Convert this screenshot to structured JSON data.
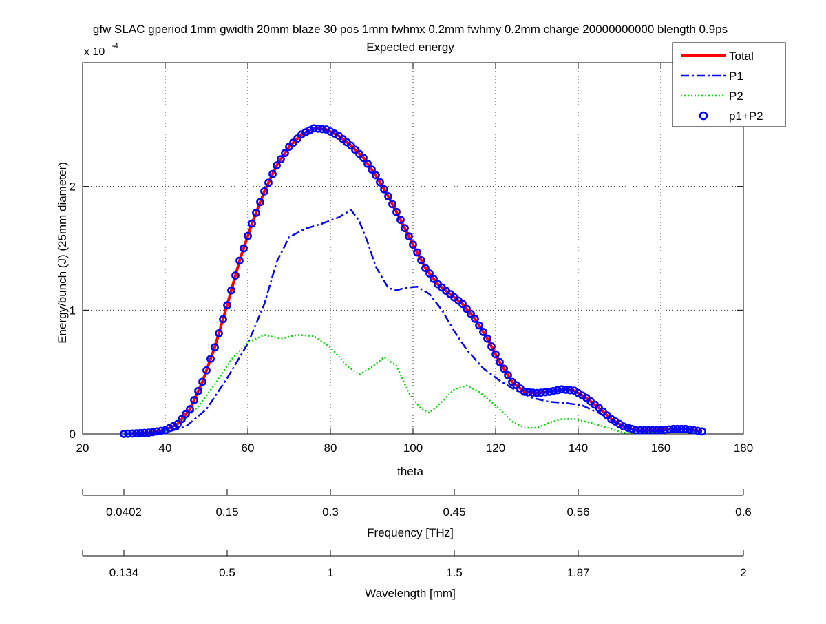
{
  "chart_data": {
    "type": "line",
    "title": "gfw SLAC gperiod 1mm gwidth 20mm blaze 30 pos 1mm fwhmx 0.2mm fwhmy 0.2mm charge 20000000000 blength 0.9ps",
    "subtitle": "Expected energy",
    "xlabel": "theta",
    "ylabel": "Energy/bunch (J) (25mm diameter)",
    "y_multiplier": "x 10",
    "y_multiplier_exponent": "-4",
    "xlim": [
      20,
      180
    ],
    "ylim": [
      0,
      0.0003
    ],
    "x_ticks": [
      20,
      40,
      60,
      80,
      100,
      120,
      140,
      160,
      180
    ],
    "y_ticks": [
      0,
      0.0001,
      0.0002
    ],
    "y_tick_labels": [
      "0",
      "1",
      "2"
    ],
    "grid": true,
    "legend_position": "top-right",
    "series": [
      {
        "name": "Total",
        "color": "#ff0000",
        "style": "solid",
        "points": [
          [
            30,
            0
          ],
          [
            36,
            1e-06
          ],
          [
            40,
            3e-06
          ],
          [
            43,
            8e-06
          ],
          [
            46,
            2e-05
          ],
          [
            49,
            4.2e-05
          ],
          [
            52,
            7e-05
          ],
          [
            55,
            0.000104
          ],
          [
            58,
            0.00014
          ],
          [
            61,
            0.00017
          ],
          [
            64,
            0.000196
          ],
          [
            67,
            0.000217
          ],
          [
            70,
            0.000232
          ],
          [
            73,
            0.000242
          ],
          [
            76,
            0.000247
          ],
          [
            79,
            0.000246
          ],
          [
            82,
            0.000241
          ],
          [
            85,
            0.000233
          ],
          [
            88,
            0.000223
          ],
          [
            91,
            0.000209
          ],
          [
            94,
            0.000192
          ],
          [
            97,
            0.000173
          ],
          [
            100,
            0.000153
          ],
          [
            103,
            0.000134
          ],
          [
            106,
            0.000121
          ],
          [
            109,
            0.000113
          ],
          [
            112,
            0.000105
          ],
          [
            115,
            9.3e-05
          ],
          [
            118,
            7.7e-05
          ],
          [
            121,
            5.8e-05
          ],
          [
            124,
            4.2e-05
          ],
          [
            127,
            3.4e-05
          ],
          [
            130,
            3.3e-05
          ],
          [
            133,
            3.4e-05
          ],
          [
            136,
            3.6e-05
          ],
          [
            139,
            3.5e-05
          ],
          [
            142,
            2.9e-05
          ],
          [
            145,
            2.1e-05
          ],
          [
            148,
            1.2e-05
          ],
          [
            151,
            6e-06
          ],
          [
            154,
            3e-06
          ],
          [
            157,
            3e-06
          ],
          [
            160,
            3e-06
          ],
          [
            163,
            4e-06
          ],
          [
            166,
            4e-06
          ],
          [
            170,
            2e-06
          ]
        ]
      },
      {
        "name": "P1",
        "color": "#0000ff",
        "style": "dashdot",
        "points": [
          [
            30,
            0
          ],
          [
            40,
            1e-06
          ],
          [
            45,
            6e-06
          ],
          [
            50,
            2e-05
          ],
          [
            55,
            4.5e-05
          ],
          [
            60,
            7.3e-05
          ],
          [
            64,
            0.000105
          ],
          [
            67,
            0.000139
          ],
          [
            70,
            0.000159
          ],
          [
            74,
            0.000166
          ],
          [
            78,
            0.00017
          ],
          [
            82,
            0.000175
          ],
          [
            85,
            0.000181
          ],
          [
            87,
            0.000172
          ],
          [
            89,
            0.000155
          ],
          [
            91,
            0.000135
          ],
          [
            94,
            0.000118
          ],
          [
            96,
            0.000116
          ],
          [
            98,
            0.000118
          ],
          [
            101,
            0.000119
          ],
          [
            104,
            0.000113
          ],
          [
            107,
            0.0001
          ],
          [
            110,
            8.3e-05
          ],
          [
            113,
            6.8e-05
          ],
          [
            117,
            5.3e-05
          ],
          [
            121,
            4.3e-05
          ],
          [
            125,
            3.5e-05
          ],
          [
            129,
            2.9e-05
          ],
          [
            133,
            2.6e-05
          ],
          [
            137,
            2.5e-05
          ],
          [
            141,
            2.3e-05
          ],
          [
            145,
            1.7e-05
          ],
          [
            149,
            9e-06
          ],
          [
            152,
            4e-06
          ],
          [
            155,
            2e-06
          ],
          [
            160,
            2e-06
          ],
          [
            165,
            2e-06
          ],
          [
            170,
            1e-06
          ]
        ]
      },
      {
        "name": "P2",
        "color": "#00dd00",
        "style": "dotted",
        "points": [
          [
            30,
            0
          ],
          [
            40,
            2e-06
          ],
          [
            44,
            1e-05
          ],
          [
            48,
            2.2e-05
          ],
          [
            52,
            4e-05
          ],
          [
            56,
            6e-05
          ],
          [
            60,
            7.4e-05
          ],
          [
            64,
            8e-05
          ],
          [
            68,
            7.7e-05
          ],
          [
            72,
            8e-05
          ],
          [
            76,
            7.9e-05
          ],
          [
            80,
            7e-05
          ],
          [
            84,
            5.5e-05
          ],
          [
            87,
            4.8e-05
          ],
          [
            90,
            5.4e-05
          ],
          [
            93,
            6.2e-05
          ],
          [
            96,
            5.5e-05
          ],
          [
            99,
            3.3e-05
          ],
          [
            102,
            2e-05
          ],
          [
            104,
            1.7e-05
          ],
          [
            107,
            2.6e-05
          ],
          [
            110,
            3.6e-05
          ],
          [
            113,
            3.9e-05
          ],
          [
            116,
            3.4e-05
          ],
          [
            120,
            2.3e-05
          ],
          [
            124,
            1e-05
          ],
          [
            127,
            5e-06
          ],
          [
            130,
            5e-06
          ],
          [
            133,
            9e-06
          ],
          [
            136,
            1.2e-05
          ],
          [
            139,
            1.2e-05
          ],
          [
            143,
            9e-06
          ],
          [
            147,
            5e-06
          ],
          [
            151,
            1e-06
          ],
          [
            155,
            1e-06
          ],
          [
            160,
            1e-06
          ],
          [
            165,
            2e-06
          ],
          [
            170,
            1e-06
          ]
        ]
      },
      {
        "name": "p1+P2",
        "color": "#0000ff",
        "style": "circles",
        "points": [
          [
            30,
            0
          ],
          [
            36,
            1e-06
          ],
          [
            40,
            3e-06
          ],
          [
            43,
            8e-06
          ],
          [
            46,
            2e-05
          ],
          [
            49,
            4.2e-05
          ],
          [
            52,
            7e-05
          ],
          [
            55,
            0.000104
          ],
          [
            58,
            0.00014
          ],
          [
            61,
            0.00017
          ],
          [
            64,
            0.000196
          ],
          [
            67,
            0.000217
          ],
          [
            70,
            0.000232
          ],
          [
            73,
            0.000242
          ],
          [
            76,
            0.000247
          ],
          [
            79,
            0.000246
          ],
          [
            82,
            0.000241
          ],
          [
            85,
            0.000233
          ],
          [
            88,
            0.000223
          ],
          [
            91,
            0.000209
          ],
          [
            94,
            0.000192
          ],
          [
            97,
            0.000173
          ],
          [
            100,
            0.000153
          ],
          [
            103,
            0.000134
          ],
          [
            106,
            0.000121
          ],
          [
            109,
            0.000113
          ],
          [
            112,
            0.000105
          ],
          [
            115,
            9.3e-05
          ],
          [
            118,
            7.7e-05
          ],
          [
            121,
            5.8e-05
          ],
          [
            124,
            4.2e-05
          ],
          [
            127,
            3.4e-05
          ],
          [
            130,
            3.3e-05
          ],
          [
            133,
            3.4e-05
          ],
          [
            136,
            3.6e-05
          ],
          [
            139,
            3.5e-05
          ],
          [
            142,
            2.9e-05
          ],
          [
            145,
            2.1e-05
          ],
          [
            148,
            1.2e-05
          ],
          [
            151,
            6e-06
          ],
          [
            154,
            3e-06
          ],
          [
            157,
            3e-06
          ],
          [
            160,
            3e-06
          ],
          [
            163,
            4e-06
          ],
          [
            166,
            4e-06
          ],
          [
            170,
            2e-06
          ]
        ]
      }
    ],
    "secondary_axes": [
      {
        "label": "Frequency [THz]",
        "tick_labels": [
          "0.0402",
          "0.15",
          "0.3",
          "0.45",
          "0.56",
          "0.6"
        ],
        "tick_theta": [
          30,
          55,
          80,
          110,
          140,
          180
        ]
      },
      {
        "label": "Wavelength [mm]",
        "tick_labels": [
          "0.134",
          "0.5",
          "1",
          "1.5",
          "1.87",
          "2"
        ],
        "tick_theta": [
          30,
          55,
          80,
          110,
          140,
          180
        ]
      }
    ]
  }
}
